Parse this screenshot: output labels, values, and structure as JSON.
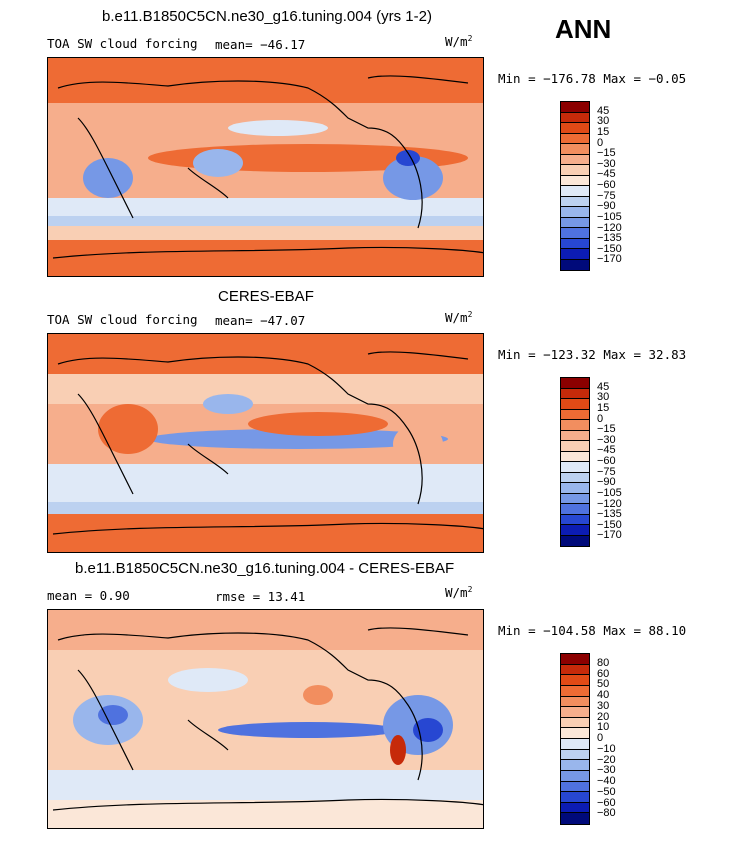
{
  "header": {
    "ann": "ANN"
  },
  "panels": [
    {
      "title": "b.e11.B1850C5CN.ne30_g16.tuning.004 (yrs 1-2)",
      "field_label": "TOA SW cloud forcing",
      "stat1": "mean= −46.17",
      "stat2": "",
      "units": "W/m",
      "units_sup": "2",
      "minmax": "Min = −176.78 Max =  −0.05",
      "colorbar_labels": [
        "45",
        "30",
        "15",
        "0",
        "−15",
        "−30",
        "−45",
        "−60",
        "−75",
        "−90",
        "−105",
        "−120",
        "−135",
        "−150",
        "−170"
      ],
      "colorbar_colors": [
        "#8b0000",
        "#c62a0a",
        "#e14a16",
        "#ee6b34",
        "#f28e5f",
        "#f6ae8c",
        "#f9cfb4",
        "#fbe7d8",
        "#dfe9f7",
        "#bcd1f0",
        "#99b6ec",
        "#7698e6",
        "#4f72df",
        "#2747d2",
        "#0c1cb3",
        "#000a7a"
      ]
    },
    {
      "title": "CERES-EBAF",
      "field_label": "TOA SW cloud forcing",
      "stat1": "mean= −47.07",
      "stat2": "",
      "units": "W/m",
      "units_sup": "2",
      "minmax": "Min = −123.32 Max =  32.83",
      "colorbar_labels": [
        "45",
        "30",
        "15",
        "0",
        "−15",
        "−30",
        "−45",
        "−60",
        "−75",
        "−90",
        "−105",
        "−120",
        "−135",
        "−150",
        "−170"
      ],
      "colorbar_colors": [
        "#8b0000",
        "#c62a0a",
        "#e14a16",
        "#ee6b34",
        "#f28e5f",
        "#f6ae8c",
        "#f9cfb4",
        "#fbe7d8",
        "#dfe9f7",
        "#bcd1f0",
        "#99b6ec",
        "#7698e6",
        "#4f72df",
        "#2747d2",
        "#0c1cb3",
        "#000a7a"
      ]
    },
    {
      "title": "b.e11.B1850C5CN.ne30_g16.tuning.004 - CERES-EBAF",
      "field_label": "",
      "stat1": "mean =   0.90",
      "stat2": "rmse =  13.41",
      "units": "W/m",
      "units_sup": "2",
      "minmax": "Min = −104.58 Max =  88.10",
      "colorbar_labels": [
        "80",
        "60",
        "50",
        "40",
        "30",
        "20",
        "10",
        "0",
        "−10",
        "−20",
        "−30",
        "−40",
        "−50",
        "−60",
        "−80"
      ],
      "colorbar_colors": [
        "#8b0000",
        "#c62a0a",
        "#e14a16",
        "#ee6b34",
        "#f28e5f",
        "#f6ae8c",
        "#f9cfb4",
        "#fbe7d8",
        "#dfe9f7",
        "#bcd1f0",
        "#99b6ec",
        "#7698e6",
        "#4f72df",
        "#2747d2",
        "#0c1cb3",
        "#000a7a"
      ]
    }
  ]
}
